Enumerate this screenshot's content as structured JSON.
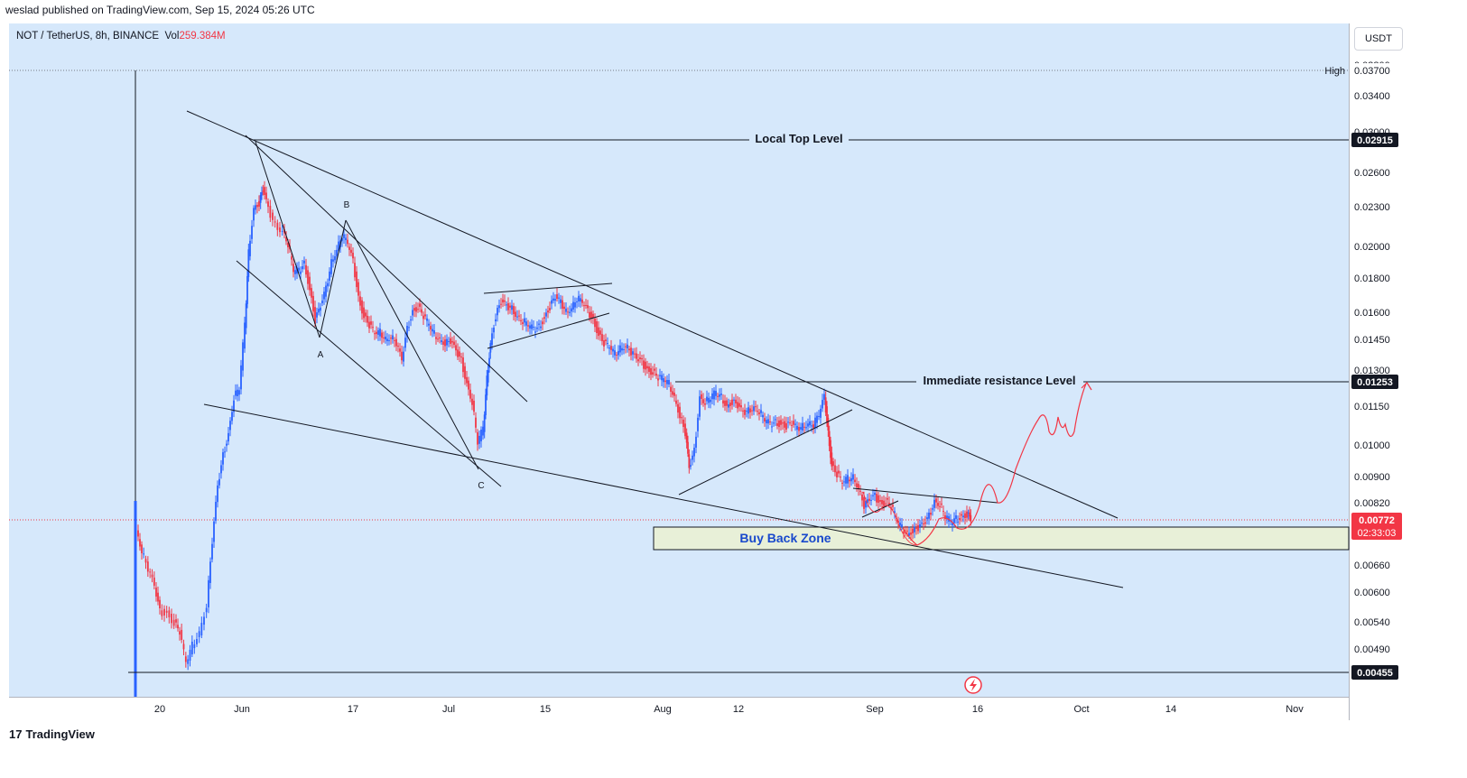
{
  "header": {
    "publisher": "weslad published on TradingView.com, Sep 15, 2024 05:26 UTC"
  },
  "symbol": {
    "name": "NOT / TetherUS, 8h, BINANCE",
    "vol_label": "Vol",
    "vol_value": "259.384M"
  },
  "currency_button": "USDT",
  "footer": {
    "brand": "TradingView",
    "mark": "17"
  },
  "colors": {
    "background": "#d6e8fb",
    "up": "#2962ff",
    "down": "#f23645",
    "zone": "#e8f0d8"
  },
  "chart_data": {
    "type": "candlestick",
    "price_scale": "log",
    "ylim": [
      0.0043,
      0.0395
    ],
    "x_tick_labels": [
      "20",
      "Jun",
      "17",
      "Jul",
      "15",
      "Aug",
      "12",
      "Sep",
      "16",
      "Oct",
      "14",
      "Nov"
    ],
    "y_tick_labels": [
      "0.03800",
      "0.03400",
      "0.03000",
      "0.02600",
      "0.02300",
      "0.02000",
      "0.01800",
      "0.01600",
      "0.01450",
      "0.01300",
      "0.01150",
      "0.01000",
      "0.00900",
      "0.00820",
      "0.00660",
      "0.00600",
      "0.00540",
      "0.00490"
    ],
    "high_label": "High",
    "high_value": "0.03700",
    "price_tags": [
      {
        "value": "0.02915",
        "style": "dark"
      },
      {
        "value": "0.01253",
        "style": "dark"
      },
      {
        "value": "0.00455",
        "style": "dark"
      }
    ],
    "current_price": {
      "value": "0.00772",
      "countdown": "02:33:03"
    },
    "annotations": {
      "local_top": "Local Top Level",
      "immediate_resistance": "Immediate resistance Level",
      "buy_back_zone": "Buy Back Zone",
      "wave_a": "A",
      "wave_b": "B",
      "wave_c": "C"
    },
    "levels": {
      "local_top": 0.02915,
      "immediate_resistance": 0.01253,
      "low": 0.00455,
      "current": 0.00772,
      "buy_back_zone": [
        0.00705,
        0.0076
      ]
    }
  }
}
